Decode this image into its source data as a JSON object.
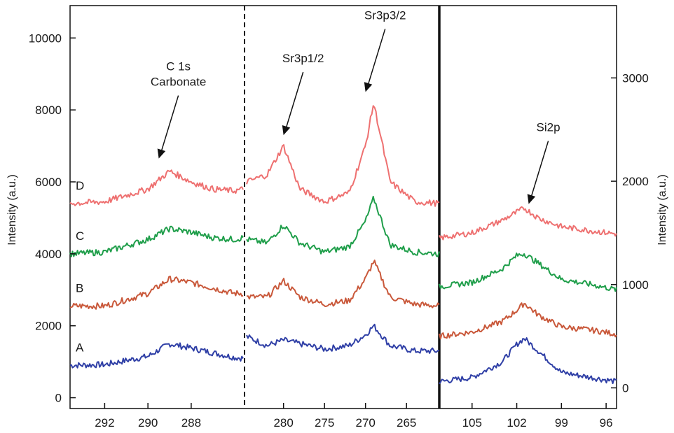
{
  "chart_data": {
    "type": "line",
    "title": "",
    "left_axis": {
      "label": "Intensity (a.u.)",
      "ticks": [
        "0",
        "2000",
        "4000",
        "6000",
        "8000",
        "10000"
      ],
      "tick_values": [
        0,
        2000,
        4000,
        6000,
        8000,
        10000
      ],
      "range": [
        -300,
        10900
      ]
    },
    "right_axis": {
      "label": "Intensity (a.u.)",
      "ticks": [
        "0",
        "1000",
        "2000",
        "3000"
      ],
      "tick_values": [
        0,
        1000,
        2000,
        3000
      ],
      "range": [
        -200,
        3700
      ]
    },
    "panels": [
      {
        "name": "C 1s",
        "x_ticks": [
          "292",
          "290",
          "288"
        ],
        "x_tick_values": [
          292,
          290,
          288
        ],
        "x_range": [
          293.6,
          285.6
        ]
      },
      {
        "name": "Sr 3p",
        "x_ticks": [
          "280",
          "275",
          "270",
          "265"
        ],
        "x_tick_values": [
          280,
          275,
          270,
          265
        ],
        "x_range": [
          284.5,
          261.0
        ]
      },
      {
        "name": "Si 2p",
        "x_ticks": [
          "105",
          "102",
          "99",
          "96"
        ],
        "x_tick_values": [
          105,
          102,
          99,
          96
        ],
        "x_range": [
          107.2,
          95.3
        ]
      }
    ],
    "series": [
      {
        "name": "A",
        "color": "#2f3fa6",
        "c1s": {
          "x": [
            293.6,
            292,
            290,
            289,
            288,
            287,
            286,
            285.6
          ],
          "y": [
            900,
            920,
            1150,
            1500,
            1380,
            1250,
            1120,
            1100
          ]
        },
        "sr3p": {
          "x": [
            284.5,
            282,
            280,
            278,
            275,
            272,
            270,
            269,
            267,
            264,
            261
          ],
          "y": [
            1700,
            1450,
            1600,
            1500,
            1350,
            1450,
            1750,
            2000,
            1450,
            1300,
            1300
          ]
        },
        "si2p": {
          "x": [
            107.2,
            105,
            103,
            102,
            101.5,
            100.5,
            99,
            97,
            95.3
          ],
          "y": [
            60,
            100,
            250,
            420,
            480,
            350,
            150,
            100,
            60
          ]
        }
      },
      {
        "name": "B",
        "color": "#c9583a",
        "c1s": {
          "x": [
            293.6,
            292,
            290,
            289,
            288,
            287,
            286,
            285.6
          ],
          "y": [
            2550,
            2550,
            2900,
            3300,
            3200,
            3050,
            2900,
            2900
          ]
        },
        "sr3p": {
          "x": [
            284.5,
            282,
            280,
            278,
            275,
            272,
            270,
            269,
            267,
            264,
            261
          ],
          "y": [
            2800,
            2800,
            3250,
            2800,
            2600,
            2700,
            3300,
            3800,
            2800,
            2600,
            2550
          ]
        },
        "si2p": {
          "x": [
            107.2,
            105,
            103,
            102,
            101.5,
            100.5,
            99,
            97,
            95.3
          ],
          "y": [
            500,
            540,
            640,
            750,
            820,
            700,
            590,
            560,
            520
          ]
        }
      },
      {
        "name": "C",
        "color": "#1f9e4a",
        "c1s": {
          "x": [
            293.6,
            292,
            290,
            289,
            288,
            287,
            286,
            285.6
          ],
          "y": [
            4000,
            4050,
            4400,
            4700,
            4600,
            4450,
            4400,
            4450
          ]
        },
        "sr3p": {
          "x": [
            284.5,
            282,
            280,
            278,
            275,
            272,
            270,
            269,
            267,
            264,
            261
          ],
          "y": [
            4400,
            4300,
            4800,
            4300,
            4050,
            4200,
            4900,
            5550,
            4250,
            4050,
            4000
          ]
        },
        "si2p": {
          "x": [
            107.2,
            105,
            103,
            102,
            101.5,
            100.5,
            99,
            97,
            95.3
          ],
          "y": [
            980,
            1020,
            1150,
            1280,
            1300,
            1200,
            1050,
            1000,
            950
          ]
        }
      },
      {
        "name": "D",
        "color": "#ee7070",
        "c1s": {
          "x": [
            293.6,
            292,
            290,
            289,
            288,
            287,
            286,
            285.6
          ],
          "y": [
            5400,
            5450,
            5800,
            6300,
            6000,
            5800,
            5750,
            5800
          ]
        },
        "sr3p": {
          "x": [
            284.5,
            282,
            280,
            278,
            275,
            272,
            270,
            269,
            267,
            264,
            261
          ],
          "y": [
            6000,
            6200,
            7000,
            5800,
            5450,
            5700,
            7000,
            8200,
            6000,
            5450,
            5400
          ]
        },
        "si2p": {
          "x": [
            107.2,
            105,
            103,
            102,
            101.5,
            100.5,
            99,
            97,
            95.3
          ],
          "y": [
            1450,
            1500,
            1620,
            1700,
            1740,
            1640,
            1560,
            1520,
            1490
          ]
        }
      }
    ],
    "series_labels": [
      "A",
      "B",
      "C",
      "D"
    ],
    "annotations": [
      {
        "lines": [
          "C 1s",
          "Carbonate"
        ],
        "arrow_to_x": 289.5,
        "arrow_to_y": 6650
      },
      {
        "lines": [
          "Sr3p1/2"
        ],
        "arrow_to_x": 280,
        "arrow_to_y": 7300
      },
      {
        "lines": [
          "Sr3p3/2"
        ],
        "arrow_to_x": 270,
        "arrow_to_y": 8500
      },
      {
        "lines": [
          "Si2p"
        ],
        "arrow_to_x": 101.2,
        "arrow_to_y": 1780
      }
    ],
    "grid": false
  }
}
